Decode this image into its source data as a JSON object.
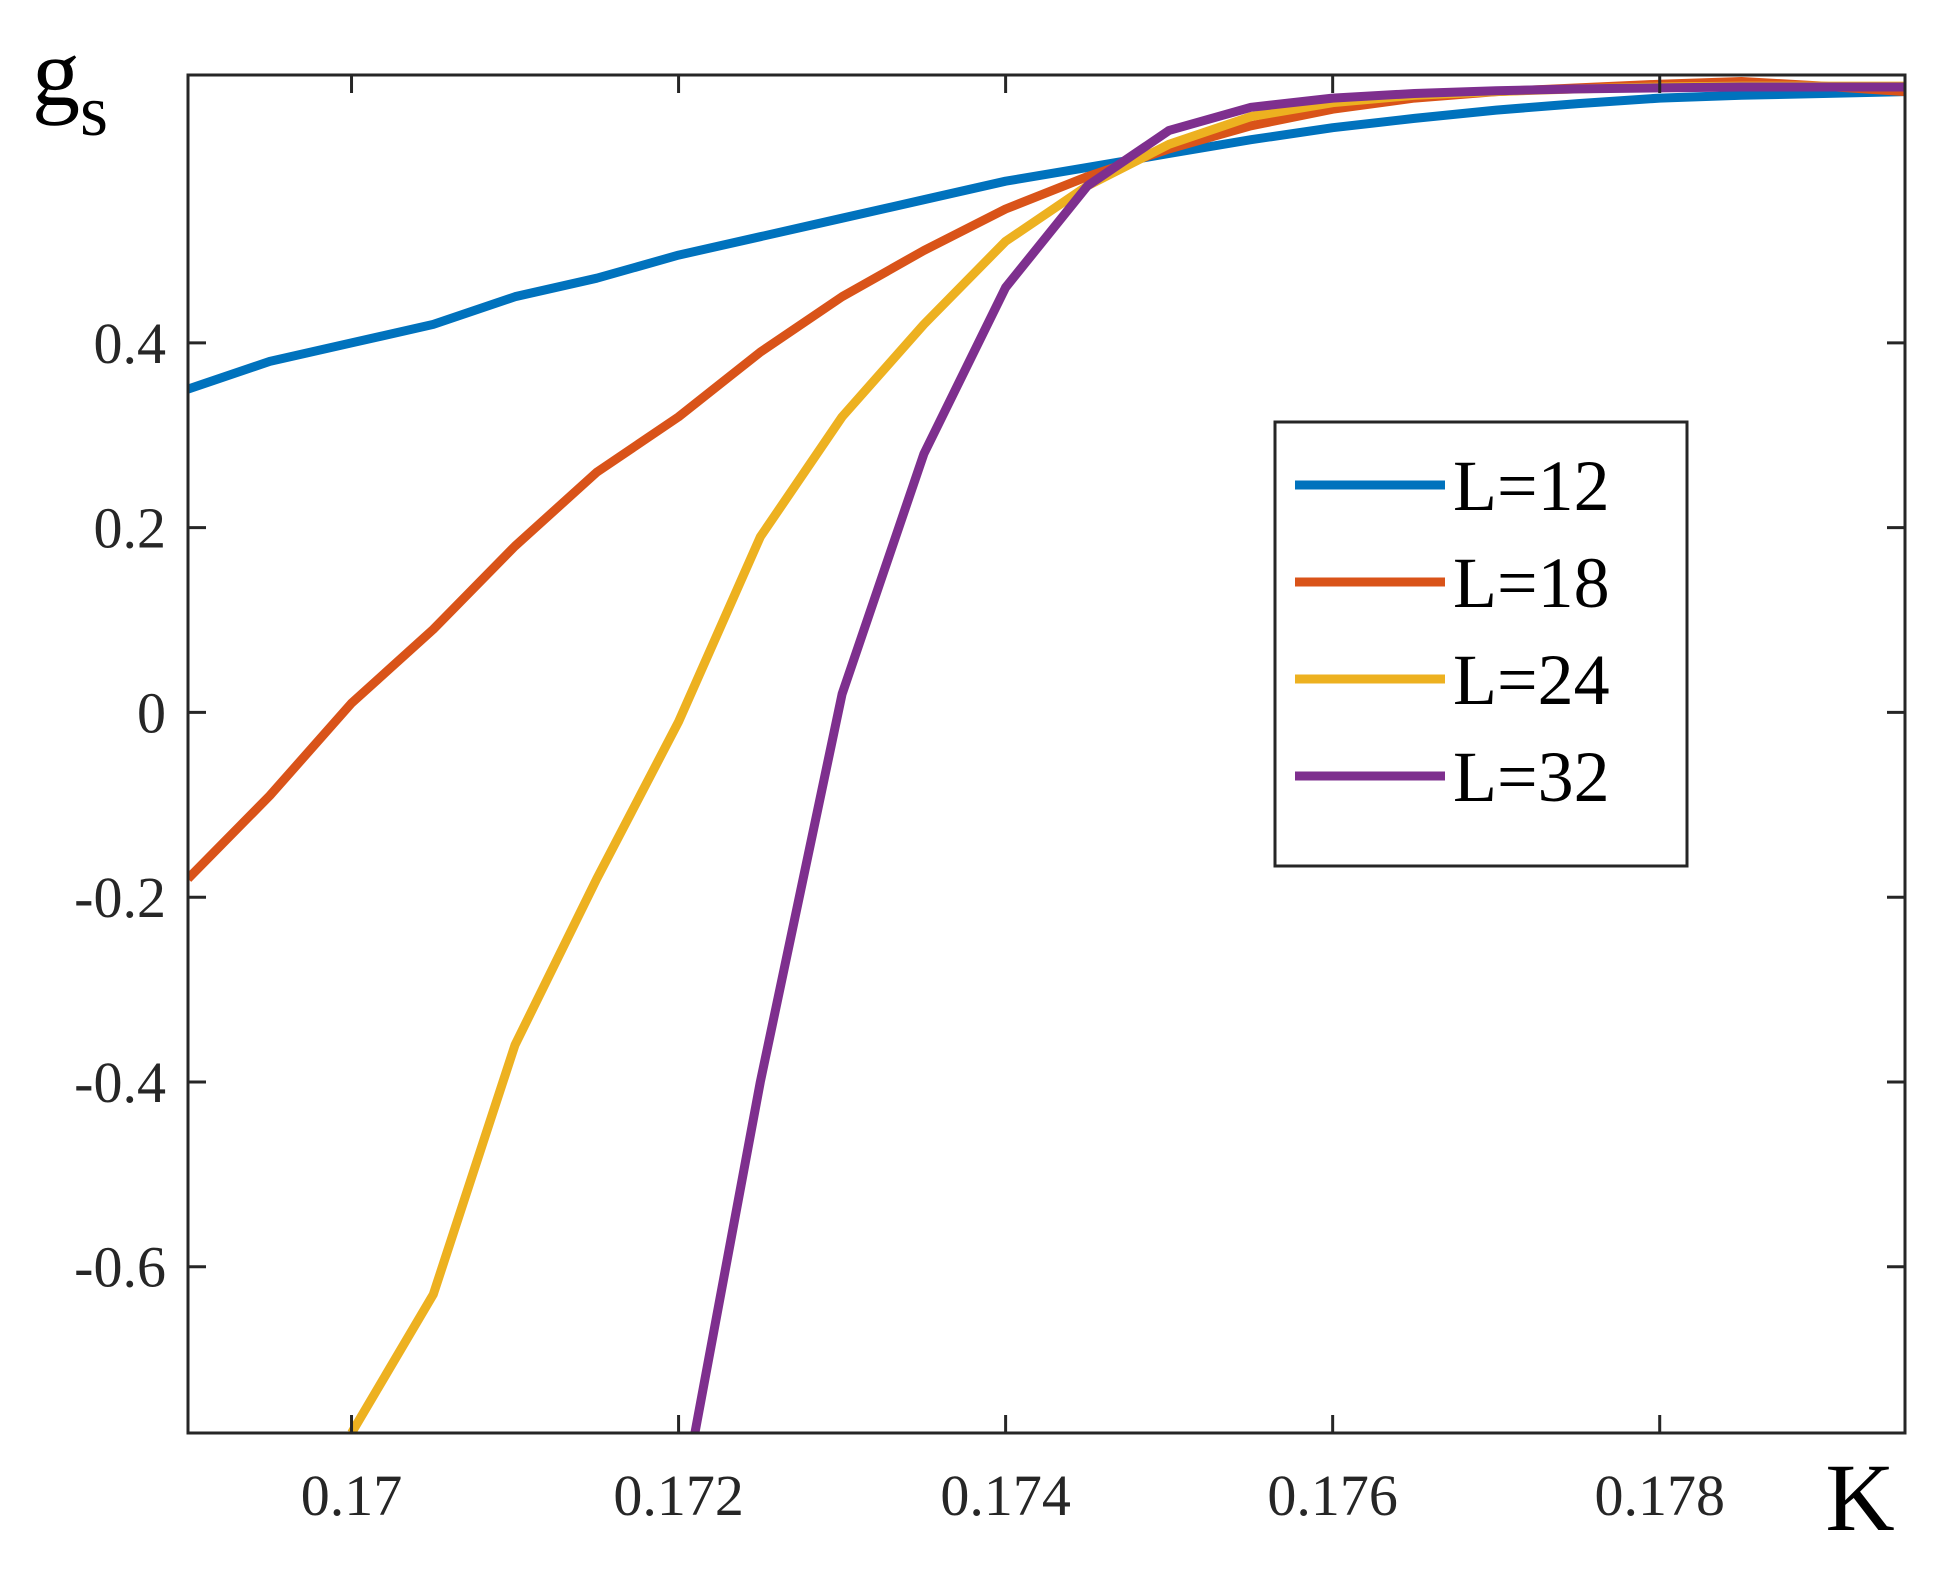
{
  "chart_data": {
    "type": "line",
    "xlabel": "K",
    "ylabel": "g",
    "ylabel_sub": "s",
    "xlim": [
      0.169,
      0.1795
    ],
    "ylim": [
      -0.78,
      0.69
    ],
    "xticks": [
      0.17,
      0.172,
      0.174,
      0.176,
      0.178
    ],
    "xtick_labels": [
      "0.17",
      "0.172",
      "0.174",
      "0.176",
      "0.178"
    ],
    "yticks": [
      -0.6,
      -0.4,
      -0.2,
      0,
      0.2,
      0.4
    ],
    "ytick_labels": [
      "-0.6",
      "-0.4",
      "-0.2",
      "0",
      "0.2",
      "0.4"
    ],
    "grid": false,
    "legend_position": "center-right",
    "series": [
      {
        "name": "L=12",
        "color": "#0072BD",
        "x": [
          0.169,
          0.1695,
          0.17,
          0.1705,
          0.171,
          0.1715,
          0.172,
          0.1725,
          0.173,
          0.1735,
          0.174,
          0.1745,
          0.175,
          0.1755,
          0.176,
          0.1765,
          0.177,
          0.1775,
          0.178,
          0.1785,
          0.179,
          0.1795
        ],
        "y": [
          0.35,
          0.38,
          0.4,
          0.42,
          0.45,
          0.47,
          0.495,
          0.515,
          0.535,
          0.555,
          0.575,
          0.59,
          0.605,
          0.62,
          0.633,
          0.643,
          0.652,
          0.659,
          0.665,
          0.668,
          0.67,
          0.672
        ]
      },
      {
        "name": "L=18",
        "color": "#D95319",
        "x": [
          0.169,
          0.1695,
          0.17,
          0.1705,
          0.171,
          0.1715,
          0.172,
          0.1725,
          0.173,
          0.1735,
          0.174,
          0.1745,
          0.175,
          0.1755,
          0.176,
          0.1765,
          0.177,
          0.1775,
          0.178,
          0.1785,
          0.179,
          0.1795
        ],
        "y": [
          -0.18,
          -0.09,
          0.01,
          0.09,
          0.18,
          0.26,
          0.32,
          0.39,
          0.45,
          0.5,
          0.545,
          0.58,
          0.61,
          0.635,
          0.653,
          0.665,
          0.672,
          0.676,
          0.68,
          0.683,
          0.678,
          0.672
        ]
      },
      {
        "name": "L=24",
        "color": "#EDB120",
        "x": [
          0.17,
          0.1705,
          0.171,
          0.1715,
          0.172,
          0.1725,
          0.173,
          0.1735,
          0.174,
          0.1745,
          0.175,
          0.1755,
          0.176,
          0.1765,
          0.177,
          0.1775,
          0.178,
          0.1785,
          0.179,
          0.1795
        ],
        "y": [
          -0.78,
          -0.63,
          -0.36,
          -0.18,
          -0.01,
          0.19,
          0.32,
          0.42,
          0.51,
          0.57,
          0.615,
          0.645,
          0.66,
          0.668,
          0.672,
          0.675,
          0.677,
          0.678,
          0.678,
          0.678
        ]
      },
      {
        "name": "L=32",
        "color": "#7E2F8E",
        "x": [
          0.1721,
          0.1725,
          0.173,
          0.1735,
          0.174,
          0.1745,
          0.175,
          0.1755,
          0.176,
          0.1765,
          0.177,
          0.1775,
          0.178,
          0.1785,
          0.179,
          0.1795
        ],
        "y": [
          -0.78,
          -0.4,
          0.02,
          0.28,
          0.46,
          0.57,
          0.63,
          0.655,
          0.665,
          0.67,
          0.673,
          0.675,
          0.676,
          0.677,
          0.677,
          0.677
        ]
      }
    ]
  }
}
